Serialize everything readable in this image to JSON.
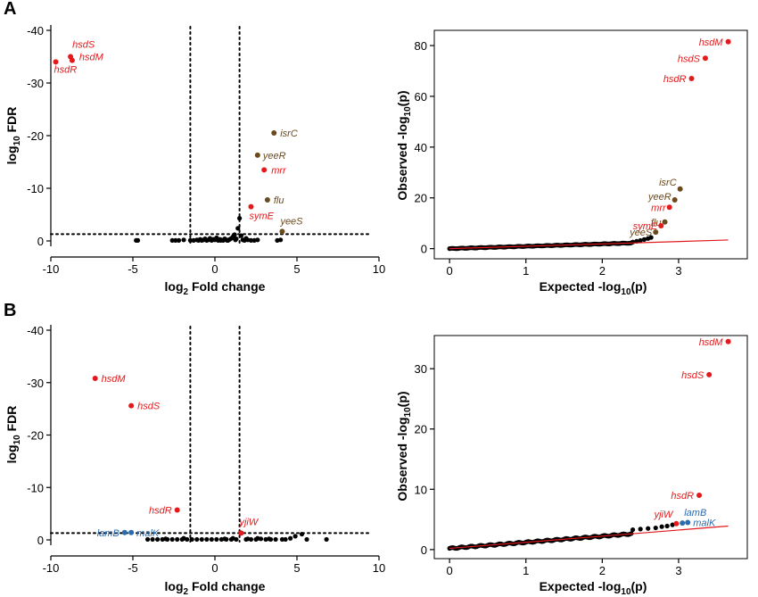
{
  "colors": {
    "red": "#e31a1c",
    "dark": "#6b4a1d",
    "blue": "#2b6cb0",
    "black": "#000000"
  },
  "panels": [
    {
      "letter": "A",
      "volcano_xlabel_main": "log",
      "volcano_xlabel_sub": "2",
      "volcano_xlabel_rest": " Fold change",
      "volcano_ylabel_main": "log",
      "volcano_ylabel_sub": "10",
      "volcano_ylabel_rest": " FDR",
      "qq_xlabel_main": "Expected -log",
      "qq_xlabel_sub": "10",
      "qq_xlabel_rest": "(p)",
      "qq_ylabel_main": "Observed -log",
      "qq_ylabel_sub": "10",
      "qq_ylabel_rest": "(p)"
    },
    {
      "letter": "B",
      "volcano_xlabel_main": "log",
      "volcano_xlabel_sub": "2",
      "volcano_xlabel_rest": " Fold change",
      "volcano_ylabel_main": "log",
      "volcano_ylabel_sub": "10",
      "volcano_ylabel_rest": " FDR",
      "qq_xlabel_main": "Expected -log",
      "qq_xlabel_sub": "10",
      "qq_xlabel_rest": "(p)",
      "qq_ylabel_main": "Observed -log",
      "qq_ylabel_sub": "10",
      "qq_ylabel_rest": "(p)"
    }
  ],
  "chart_data": [
    {
      "id": "A-volcano",
      "type": "scatter",
      "panel": "A",
      "xlabel": "log2 Fold change",
      "ylabel": "log10 FDR",
      "xlim": [
        -10,
        10
      ],
      "ylim": [
        0,
        -40
      ],
      "xticks": [
        "-10",
        "-5",
        "0",
        "5",
        "10"
      ],
      "yticks": [
        "0",
        "-10",
        "-20",
        "-30",
        "-40"
      ],
      "xtick_values": [
        -10,
        -5,
        0,
        5,
        10
      ],
      "ytick_values": [
        0,
        -10,
        -20,
        -30,
        -40
      ],
      "thresholds": {
        "x": [
          -1.5,
          1.5
        ],
        "y": -1.3
      },
      "labeled_points": [
        {
          "label": "hsdS",
          "x": -8.8,
          "y": -35.0,
          "color": "red"
        },
        {
          "label": "hsdM",
          "x": -8.7,
          "y": -34.3,
          "color": "red"
        },
        {
          "label": "hsdR",
          "x": -9.7,
          "y": -34.0,
          "color": "red"
        },
        {
          "label": "isrC",
          "x": 3.6,
          "y": -20.5,
          "color": "dark"
        },
        {
          "label": "yeeR",
          "x": 2.6,
          "y": -16.3,
          "color": "dark"
        },
        {
          "label": "mrr",
          "x": 3.0,
          "y": -13.5,
          "color": "red"
        },
        {
          "label": "flu",
          "x": 3.2,
          "y": -7.8,
          "color": "dark"
        },
        {
          "label": "symE",
          "x": 2.2,
          "y": -6.5,
          "color": "red"
        },
        {
          "label": "yeeS",
          "x": 4.1,
          "y": -1.8,
          "color": "dark"
        }
      ],
      "background_points": [
        [
          -4.8,
          -0.1
        ],
        [
          -4.7,
          -0.1
        ],
        [
          -2.6,
          -0.1
        ],
        [
          -2.4,
          -0.1
        ],
        [
          -2.2,
          -0.1
        ],
        [
          -1.9,
          -0.2
        ],
        [
          -1.5,
          -0.1
        ],
        [
          -1.3,
          -0.1
        ],
        [
          -1.1,
          -0.2
        ],
        [
          -0.9,
          -0.3
        ],
        [
          -0.8,
          -0.1
        ],
        [
          -0.6,
          -0.4
        ],
        [
          -0.5,
          -0.1
        ],
        [
          -0.4,
          -0.2
        ],
        [
          -0.3,
          -0.5
        ],
        [
          -0.2,
          -0.1
        ],
        [
          -0.1,
          -0.3
        ],
        [
          0.0,
          -0.2
        ],
        [
          0.1,
          -0.6
        ],
        [
          0.2,
          -0.1
        ],
        [
          0.3,
          -0.3
        ],
        [
          0.4,
          -0.2
        ],
        [
          0.5,
          -0.1
        ],
        [
          0.6,
          -0.4
        ],
        [
          0.7,
          -0.2
        ],
        [
          0.8,
          -0.1
        ],
        [
          0.9,
          -0.3
        ],
        [
          1.0,
          -0.5
        ],
        [
          1.1,
          -0.8
        ],
        [
          1.2,
          -1.2
        ],
        [
          1.3,
          -0.4
        ],
        [
          1.4,
          -2.4
        ],
        [
          1.5,
          -4.3
        ],
        [
          1.6,
          -1.0
        ],
        [
          1.7,
          -0.2
        ],
        [
          1.8,
          -0.1
        ],
        [
          2.0,
          -0.2
        ],
        [
          2.2,
          -0.1
        ],
        [
          2.4,
          -0.1
        ],
        [
          2.6,
          -0.2
        ],
        [
          3.8,
          -0.1
        ],
        [
          4.0,
          -0.2
        ],
        [
          -1.0,
          -0.1
        ],
        [
          -0.7,
          -0.2
        ],
        [
          0.35,
          -0.1
        ],
        [
          0.75,
          -0.1
        ],
        [
          1.25,
          -0.2
        ],
        [
          1.9,
          -0.5
        ]
      ]
    },
    {
      "id": "A-qq",
      "type": "scatter",
      "panel": "A",
      "xlabel": "Expected -log10(p)",
      "ylabel": "Observed -log10(p)",
      "xlim": [
        -0.2,
        3.9
      ],
      "ylim": [
        -4,
        86
      ],
      "xticks": [
        "0",
        "1",
        "2",
        "3"
      ],
      "yticks": [
        "0",
        "20",
        "40",
        "60",
        "80"
      ],
      "xtick_values": [
        0,
        1,
        2,
        3
      ],
      "ytick_values": [
        0,
        20,
        40,
        60,
        80
      ],
      "fit_line": [
        [
          0,
          0
        ],
        [
          3.65,
          3.4
        ]
      ],
      "labeled_points": [
        {
          "label": "hsdM",
          "x": 3.65,
          "y": 81.5,
          "color": "red"
        },
        {
          "label": "hsdS",
          "x": 3.35,
          "y": 75.0,
          "color": "red"
        },
        {
          "label": "hsdR",
          "x": 3.17,
          "y": 67.0,
          "color": "red"
        },
        {
          "label": "isrC",
          "x": 3.02,
          "y": 23.5,
          "color": "dark"
        },
        {
          "label": "yeeR",
          "x": 2.95,
          "y": 19.2,
          "color": "dark"
        },
        {
          "label": "mrr",
          "x": 2.88,
          "y": 16.3,
          "color": "red"
        },
        {
          "label": "flu",
          "x": 2.82,
          "y": 10.5,
          "color": "dark"
        },
        {
          "label": "symE",
          "x": 2.77,
          "y": 9.0,
          "color": "red"
        },
        {
          "label": "yeeS",
          "x": 2.7,
          "y": 6.5,
          "color": "dark"
        }
      ],
      "tail_points": [
        [
          2.4,
          2.6
        ],
        [
          2.45,
          2.9
        ],
        [
          2.5,
          3.2
        ],
        [
          2.55,
          3.6
        ],
        [
          2.6,
          4.0
        ],
        [
          2.64,
          4.4
        ]
      ]
    },
    {
      "id": "B-volcano",
      "type": "scatter",
      "panel": "B",
      "xlabel": "log2 Fold change",
      "ylabel": "log10 FDR",
      "xlim": [
        -10,
        10
      ],
      "ylim": [
        0,
        -40
      ],
      "xticks": [
        "-10",
        "-5",
        "0",
        "5",
        "10"
      ],
      "yticks": [
        "0",
        "-10",
        "-20",
        "-30",
        "-40"
      ],
      "xtick_values": [
        -10,
        -5,
        0,
        5,
        10
      ],
      "ytick_values": [
        0,
        -10,
        -20,
        -30,
        -40
      ],
      "thresholds": {
        "x": [
          -1.5,
          1.5
        ],
        "y": -1.3
      },
      "labeled_points": [
        {
          "label": "hsdM",
          "x": -7.3,
          "y": -30.8,
          "color": "red"
        },
        {
          "label": "hsdS",
          "x": -5.1,
          "y": -25.6,
          "color": "red"
        },
        {
          "label": "hsdR",
          "x": -2.3,
          "y": -5.7,
          "color": "red"
        },
        {
          "label": "lamB",
          "x": -5.5,
          "y": -1.4,
          "color": "blue"
        },
        {
          "label": "malK",
          "x": -5.1,
          "y": -1.4,
          "color": "blue"
        },
        {
          "label": "yjiW",
          "x": 1.6,
          "y": -1.3,
          "color": "red"
        }
      ],
      "background_points": [
        [
          -4.1,
          -0.1
        ],
        [
          -3.8,
          -0.1
        ],
        [
          -3.5,
          -0.1
        ],
        [
          -3.2,
          -0.1
        ],
        [
          -2.9,
          -0.1
        ],
        [
          -2.6,
          -0.1
        ],
        [
          -2.3,
          -0.1
        ],
        [
          -2.0,
          -0.1
        ],
        [
          -1.7,
          -0.1
        ],
        [
          -1.4,
          -0.1
        ],
        [
          -1.1,
          -0.1
        ],
        [
          -0.8,
          -0.1
        ],
        [
          -0.5,
          -0.1
        ],
        [
          -0.2,
          -0.1
        ],
        [
          0.1,
          -0.1
        ],
        [
          0.4,
          -0.1
        ],
        [
          0.7,
          -0.1
        ],
        [
          1.0,
          -0.1
        ],
        [
          1.3,
          -0.1
        ],
        [
          1.9,
          -0.1
        ],
        [
          2.2,
          -0.1
        ],
        [
          2.5,
          -0.1
        ],
        [
          2.8,
          -0.2
        ],
        [
          3.1,
          -0.1
        ],
        [
          3.4,
          -0.1
        ],
        [
          3.7,
          -0.1
        ],
        [
          4.1,
          -0.1
        ],
        [
          4.6,
          -0.3
        ],
        [
          4.9,
          -0.7
        ],
        [
          5.3,
          -1.1
        ],
        [
          5.6,
          -0.1
        ],
        [
          6.8,
          -0.1
        ],
        [
          -3.0,
          -0.2
        ],
        [
          -1.9,
          -0.3
        ],
        [
          0.6,
          -0.2
        ],
        [
          1.1,
          -0.3
        ],
        [
          2.0,
          -0.2
        ],
        [
          2.6,
          -0.3
        ],
        [
          3.3,
          -0.2
        ],
        [
          4.3,
          -0.1
        ]
      ]
    },
    {
      "id": "B-qq",
      "type": "scatter",
      "panel": "B",
      "xlabel": "Expected -log10(p)",
      "ylabel": "Observed -log10(p)",
      "xlim": [
        -0.2,
        3.9
      ],
      "ylim": [
        -1.5,
        35.5
      ],
      "xticks": [
        "0",
        "1",
        "2",
        "3"
      ],
      "yticks": [
        "0",
        "10",
        "20",
        "30"
      ],
      "xtick_values": [
        0,
        1,
        2,
        3
      ],
      "ytick_values": [
        0,
        10,
        20,
        30
      ],
      "fit_line": [
        [
          0,
          0.2
        ],
        [
          3.65,
          3.9
        ]
      ],
      "labeled_points": [
        {
          "label": "hsdM",
          "x": 3.65,
          "y": 34.5,
          "color": "red"
        },
        {
          "label": "hsdS",
          "x": 3.4,
          "y": 29.0,
          "color": "red"
        },
        {
          "label": "hsdR",
          "x": 3.27,
          "y": 9.0,
          "color": "red"
        },
        {
          "label": "yjiW",
          "x": 2.97,
          "y": 4.3,
          "color": "red"
        },
        {
          "label": "lamB",
          "x": 3.05,
          "y": 4.4,
          "color": "blue"
        },
        {
          "label": "malK",
          "x": 3.12,
          "y": 4.5,
          "color": "blue"
        }
      ],
      "tail_points": [
        [
          2.4,
          3.3
        ],
        [
          2.5,
          3.4
        ],
        [
          2.6,
          3.5
        ],
        [
          2.7,
          3.6
        ],
        [
          2.78,
          3.8
        ],
        [
          2.85,
          3.9
        ],
        [
          2.92,
          4.1
        ]
      ]
    }
  ]
}
